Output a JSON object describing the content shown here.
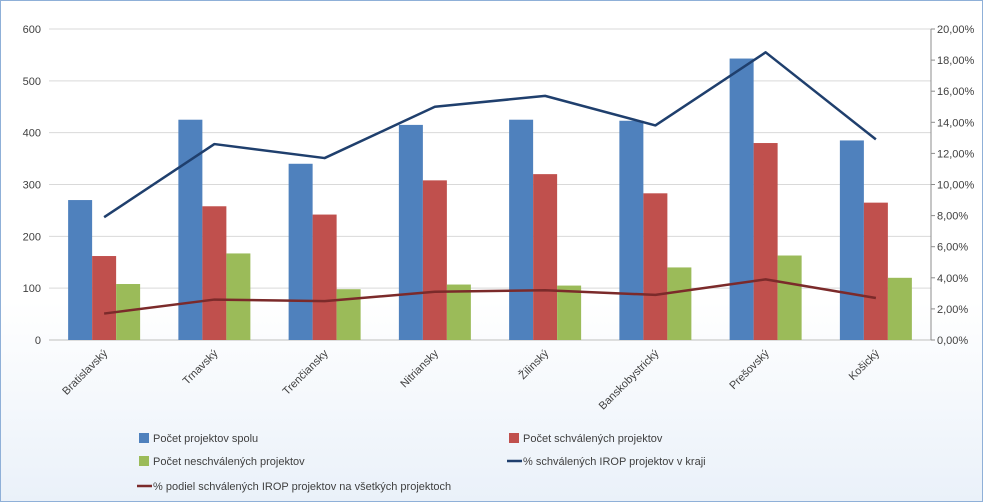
{
  "chart_data": {
    "type": "bar",
    "categories": [
      "Bratislavský",
      "Trnavský",
      "Trenčiansky",
      "Nitriansky",
      "Žilinský",
      "Banskobystrický",
      "Prešovský",
      "Košický"
    ],
    "series": [
      {
        "name": "Počet projektov spolu",
        "kind": "bar",
        "axis": "left",
        "color": "#4f81bd",
        "values": [
          270,
          425,
          340,
          415,
          425,
          423,
          543,
          385
        ]
      },
      {
        "name": "Počet schválených projektov",
        "kind": "bar",
        "axis": "left",
        "color": "#c0504d",
        "values": [
          162,
          258,
          242,
          308,
          320,
          283,
          380,
          265
        ]
      },
      {
        "name": "Počet neschválených projektov",
        "kind": "bar",
        "axis": "left",
        "color": "#9bbb59",
        "values": [
          108,
          167,
          98,
          107,
          105,
          140,
          163,
          120
        ]
      },
      {
        "name": "% schválených IROP projektov v kraji",
        "kind": "line",
        "axis": "right",
        "color": "#1f3f6d",
        "values": [
          0.079,
          0.126,
          0.117,
          0.15,
          0.157,
          0.138,
          0.185,
          0.129
        ]
      },
      {
        "name": "% podiel schválených IROP projektov na všetkých projektoch",
        "kind": "line",
        "axis": "right",
        "color": "#7b2a2a",
        "values": [
          0.017,
          0.026,
          0.025,
          0.031,
          0.032,
          0.029,
          0.039,
          0.027
        ]
      }
    ],
    "y_left": {
      "ylim": [
        0,
        600
      ],
      "ticks": [
        "0",
        "100",
        "200",
        "300",
        "400",
        "500",
        "600"
      ]
    },
    "y_right": {
      "ylim": [
        0,
        0.2
      ],
      "ticks": [
        "0,00%",
        "2,00%",
        "4,00%",
        "6,00%",
        "8,00%",
        "10,00%",
        "12,00%",
        "14,00%",
        "16,00%",
        "18,00%",
        "20,00%"
      ]
    },
    "grid": true,
    "legend_position": "bottom"
  }
}
